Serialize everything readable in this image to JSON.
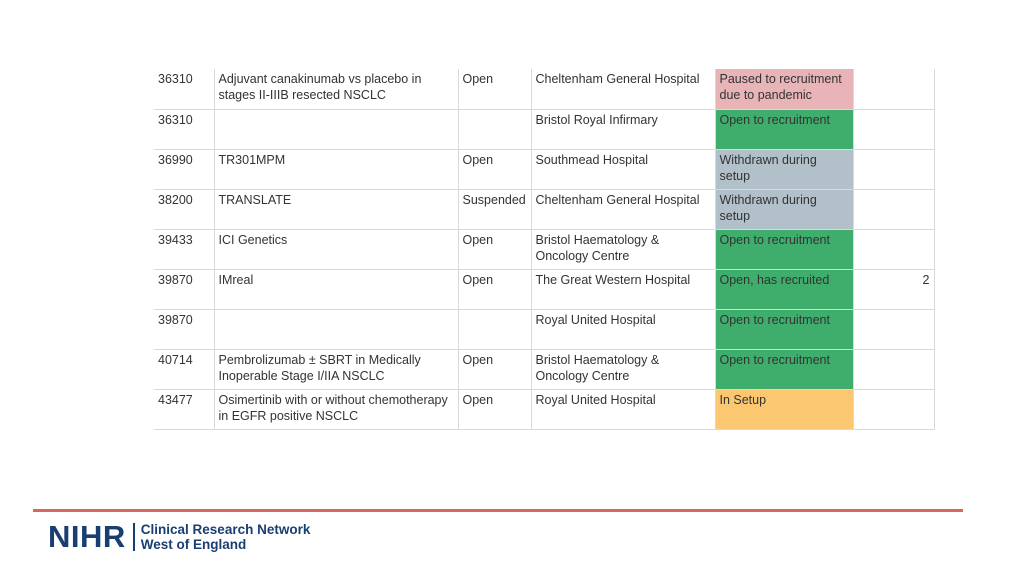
{
  "table": {
    "rows": [
      {
        "id": "36310",
        "title": "Adjuvant canakinumab vs placebo in stages II-IIIB resected NSCLC",
        "status": "Open",
        "site": "Cheltenham General Hospital",
        "recruitment": "Paused to recruitment due to pandemic",
        "recruitment_color": "#e8b4b8",
        "count": ""
      },
      {
        "id": "36310",
        "title": "",
        "status": "",
        "site": "Bristol Royal Infirmary",
        "recruitment": "Open to recruitment",
        "recruitment_color": "#3fad6c",
        "count": ""
      },
      {
        "id": "36990",
        "title": "TR301MPM",
        "status": "Open",
        "site": "Southmead Hospital",
        "recruitment": "Withdrawn during setup",
        "recruitment_color": "#b2c0c9",
        "count": ""
      },
      {
        "id": "38200",
        "title": "TRANSLATE",
        "status": "Suspended",
        "site": "Cheltenham General Hospital",
        "recruitment": "Withdrawn during setup",
        "recruitment_color": "#b2c0c9",
        "count": ""
      },
      {
        "id": "39433",
        "title": "ICI Genetics",
        "status": "Open",
        "site": "Bristol Haematology & Oncology Centre",
        "recruitment": "Open to recruitment",
        "recruitment_color": "#3fad6c",
        "count": ""
      },
      {
        "id": "39870",
        "title": "IMreal",
        "status": "Open",
        "site": "The Great Western Hospital",
        "recruitment": "Open, has recruited",
        "recruitment_color": "#3fad6c",
        "count": "2"
      },
      {
        "id": "39870",
        "title": "",
        "status": "",
        "site": "Royal United Hospital",
        "recruitment": "Open to recruitment",
        "recruitment_color": "#3fad6c",
        "count": ""
      },
      {
        "id": "40714",
        "title": "Pembrolizumab ± SBRT in Medically Inoperable Stage I/IIA NSCLC",
        "status": "Open",
        "site": "Bristol Haematology & Oncology Centre",
        "recruitment": "Open to recruitment",
        "recruitment_color": "#3fad6c",
        "count": ""
      },
      {
        "id": "43477",
        "title": "Osimertinib with or without chemotherapy in EGFR positive NSCLC",
        "status": "Open",
        "site": "Royal United Hospital",
        "recruitment": "In Setup",
        "recruitment_color": "#fcc771",
        "count": ""
      }
    ]
  },
  "footer": {
    "logo_mark": "NIHR",
    "logo_line1": "Clinical Research Network",
    "logo_line2": "West of England",
    "brand_color": "#193e72",
    "rule_color": "#d8685a"
  }
}
